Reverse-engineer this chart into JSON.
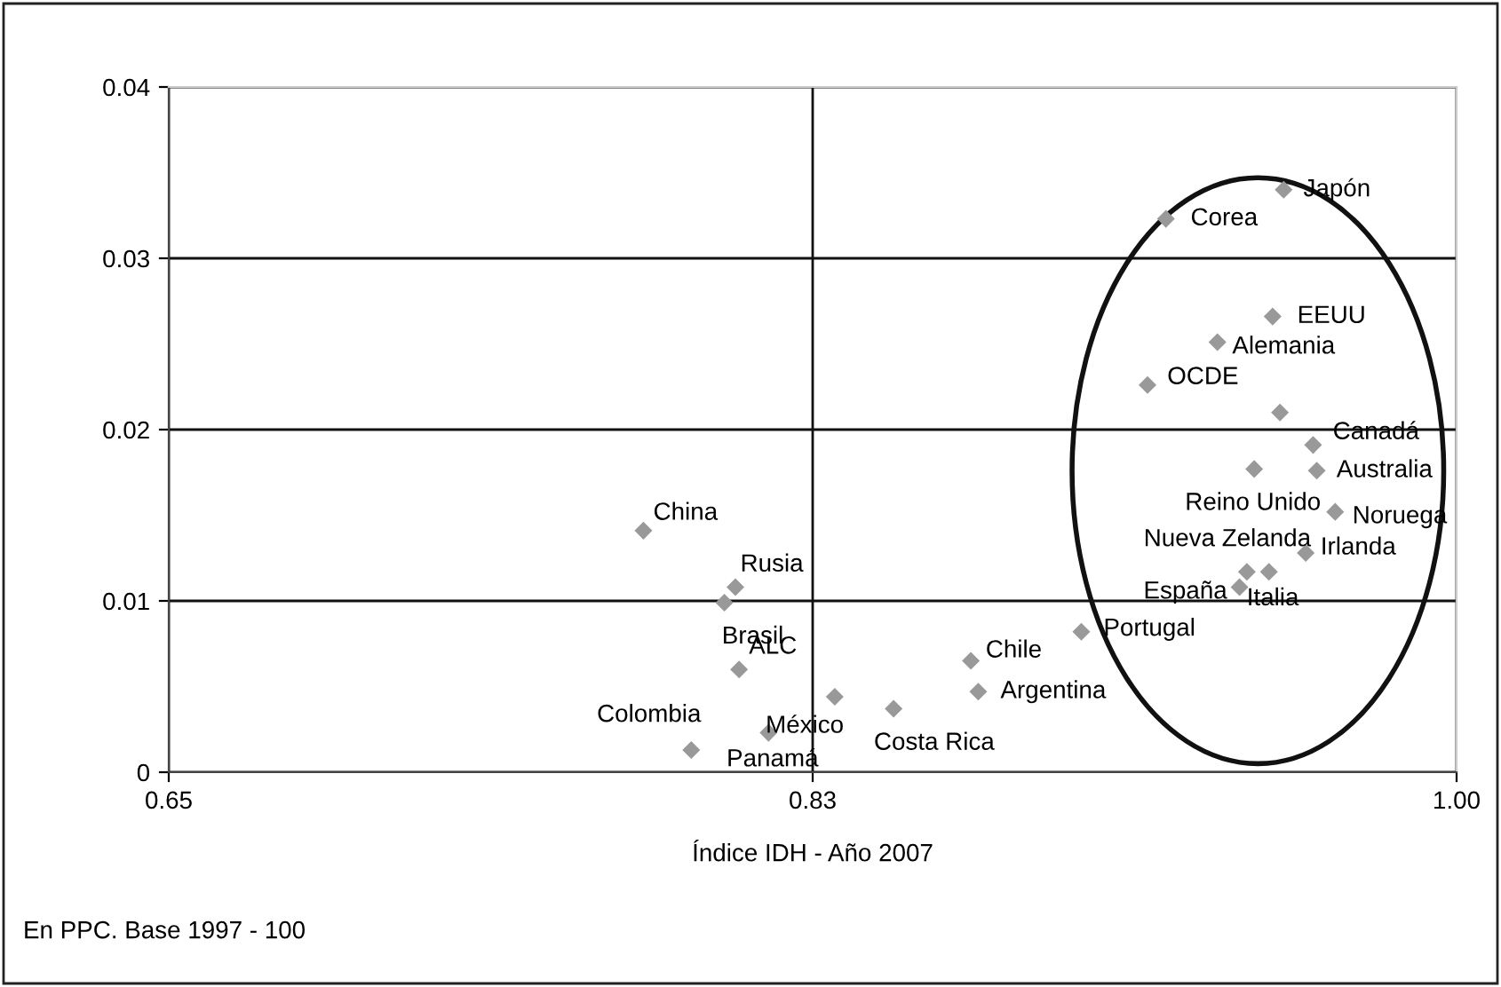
{
  "chart_data": {
    "type": "scatter",
    "xlabel": "Índice IDH - Año 2007",
    "xlim": [
      0.65,
      1.0
    ],
    "xticks": [
      0.65,
      {
        "value": 0.825,
        "label": "0.83"
      },
      {
        "value": 1.0,
        "label": "1.00"
      }
    ],
    "ylim": [
      0,
      0.04
    ],
    "yticks": [
      0,
      0.01,
      0.02,
      0.03,
      0.04
    ],
    "grid": true,
    "marker": "diamond",
    "series": [
      {
        "color": "#999999",
        "x": [
          0.779,
          0.804,
          0.801,
          0.805,
          0.792,
          0.813,
          0.831,
          0.847,
          0.868,
          0.87,
          0.898,
          0.921,
          0.953,
          0.95,
          0.935,
          0.916,
          0.952,
          0.961,
          0.945,
          0.962,
          0.967,
          0.959,
          0.943,
          0.941,
          0.949
        ],
        "values": [
          0.0141,
          0.0108,
          0.0099,
          0.006,
          0.0013,
          0.0023,
          0.0044,
          0.0037,
          0.0065,
          0.0047,
          0.0082,
          0.0323,
          0.034,
          0.0266,
          0.0251,
          0.0226,
          0.021,
          0.0191,
          0.0177,
          0.0176,
          0.0152,
          0.0128,
          0.0117,
          0.0108,
          0.0117
        ]
      }
    ],
    "annotations": [
      {
        "text": "China",
        "x": 0.779,
        "y": 0.0141
      },
      {
        "text": "Rusia",
        "x": 0.804,
        "y": 0.0108
      },
      {
        "text": "Brasil",
        "x": 0.801,
        "y": 0.0099
      },
      {
        "text": "ALC",
        "x": 0.805,
        "y": 0.006
      },
      {
        "text": "Colombia",
        "x": 0.792,
        "y": 0.0013
      },
      {
        "text": "Panamá",
        "x": 0.813,
        "y": 0.0023
      },
      {
        "text": "México",
        "x": 0.831,
        "y": 0.0044
      },
      {
        "text": "Costa Rica",
        "x": 0.847,
        "y": 0.0037
      },
      {
        "text": "Chile",
        "x": 0.868,
        "y": 0.0065
      },
      {
        "text": "Argentina",
        "x": 0.87,
        "y": 0.0047
      },
      {
        "text": "Portugal",
        "x": 0.898,
        "y": 0.0082
      },
      {
        "text": "Corea",
        "x": 0.921,
        "y": 0.0323
      },
      {
        "text": "Japón",
        "x": 0.953,
        "y": 0.034
      },
      {
        "text": "EEUU",
        "x": 0.95,
        "y": 0.0266
      },
      {
        "text": "Alemania",
        "x": 0.935,
        "y": 0.0251
      },
      {
        "text": "OCDE",
        "x": 0.916,
        "y": 0.0226
      },
      {
        "text": "Canadá",
        "x": 0.961,
        "y": 0.0191
      },
      {
        "text": "Reino Unido",
        "x": 0.945,
        "y": 0.0177
      },
      {
        "text": "Australia",
        "x": 0.962,
        "y": 0.0176
      },
      {
        "text": "Noruega",
        "x": 0.967,
        "y": 0.0152
      },
      {
        "text": "Irlanda",
        "x": 0.959,
        "y": 0.0128
      },
      {
        "text": "Nueva Zelanda",
        "x": 0.943,
        "y": 0.0117
      },
      {
        "text": "España",
        "x": 0.941,
        "y": 0.0108
      },
      {
        "text": "Italia",
        "x": 0.949,
        "y": 0.0117
      },
      "En PPC. Base 1997 - 100"
    ]
  }
}
